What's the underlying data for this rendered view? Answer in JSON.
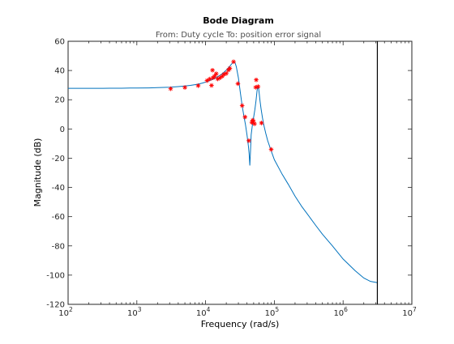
{
  "chart_data": {
    "type": "line",
    "title": "Bode Diagram",
    "subtitle": "From: Duty cycle  To: position error signal",
    "xlabel": "Frequency  (rad/s)",
    "ylabel": "Magnitude (dB)",
    "xscale": "log",
    "xlim": [
      100,
      10000000
    ],
    "ylim": [
      -120,
      60
    ],
    "grid": false,
    "x_ticks": [
      {
        "value": 100,
        "base": "10",
        "exp": "2"
      },
      {
        "value": 1000,
        "base": "10",
        "exp": "3"
      },
      {
        "value": 10000,
        "base": "10",
        "exp": "4"
      },
      {
        "value": 100000,
        "base": "10",
        "exp": "5"
      },
      {
        "value": 1000000,
        "base": "10",
        "exp": "6"
      },
      {
        "value": 10000000,
        "base": "10",
        "exp": "7"
      }
    ],
    "y_ticks": [
      "60",
      "40",
      "20",
      "0",
      "-20",
      "-40",
      "-60",
      "-80",
      "-100",
      "-120"
    ],
    "vertical_line_x": 3150000,
    "colors": {
      "model_line": "#0072bd",
      "measured_markers": "#ff0000",
      "vertical_line": "#000000",
      "axes": "#262626"
    },
    "series": [
      {
        "kind": "line",
        "x": [
          100,
          150,
          200,
          300,
          400,
          600,
          800,
          1000,
          1500,
          2000,
          3000,
          4000,
          5000,
          6000,
          7000,
          8000,
          9000,
          10000,
          11000,
          12000,
          13000,
          14000,
          15000,
          16000,
          17000,
          18000,
          19000,
          20000,
          21000,
          22000,
          23000,
          24000,
          25000,
          26000,
          27000,
          28000,
          30000,
          32000,
          34000,
          36000,
          38000,
          40000,
          41000,
          42000,
          43000,
          44000,
          45000,
          46000,
          48000,
          50000,
          52000,
          54000,
          56000,
          57000,
          58000,
          59000,
          60000,
          62000,
          64000,
          67000,
          70000,
          75000,
          80000,
          90000,
          100000,
          130000,
          160000,
          200000,
          250000,
          300000,
          400000,
          500000,
          700000,
          1000000,
          1500000,
          2000000,
          2500000,
          3000000,
          3150000
        ],
        "y": [
          27.8,
          27.8,
          27.8,
          27.8,
          27.9,
          27.9,
          28.0,
          28.0,
          28.1,
          28.3,
          28.6,
          29.0,
          29.4,
          29.8,
          30.3,
          30.8,
          31.4,
          32.1,
          32.8,
          33.5,
          34.2,
          35.0,
          35.8,
          36.6,
          37.4,
          38.3,
          39.3,
          40.3,
          41.3,
          42.4,
          43.5,
          44.6,
          45.4,
          45.8,
          45.0,
          42.5,
          35.0,
          25.0,
          16.0,
          9.0,
          3.0,
          -4.0,
          -8.0,
          -12.0,
          -17.0,
          -25.0,
          -15.0,
          -4.0,
          3.0,
          8.0,
          13.0,
          19.0,
          26.0,
          28.5,
          29.0,
          28.0,
          25.0,
          19.0,
          14.0,
          8.0,
          3.0,
          -3.0,
          -8.0,
          -15.0,
          -21.0,
          -31.0,
          -38.0,
          -46.0,
          -53.0,
          -58.0,
          -66.0,
          -72.0,
          -80.0,
          -89.0,
          -97.0,
          -102.0,
          -104.3,
          -105.0,
          -105.2
        ]
      },
      {
        "kind": "scatter",
        "x": [
          3100,
          5000,
          7800,
          10500,
          11500,
          12200,
          12600,
          12800,
          13500,
          14300,
          15000,
          16200,
          17500,
          18500,
          20000,
          21500,
          22500,
          25500,
          29500,
          34000,
          37500,
          42500,
          47000,
          48500,
          49500,
          51500,
          53500,
          54500,
          58000,
          65000,
          90000
        ],
        "y": [
          27.5,
          28.4,
          29.6,
          33.1,
          34.2,
          29.8,
          40.2,
          35.0,
          36.1,
          37.8,
          34.2,
          35.0,
          36.1,
          37.4,
          38.0,
          40.3,
          41.5,
          46.0,
          31.0,
          16.0,
          8.2,
          -8.0,
          4.5,
          6.0,
          5.3,
          3.5,
          28.5,
          33.6,
          29.0,
          4.1,
          -14.0
        ]
      }
    ]
  }
}
